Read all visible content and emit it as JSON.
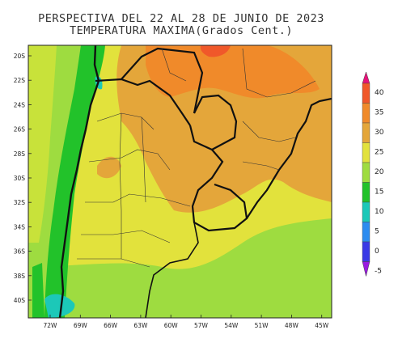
{
  "title": {
    "line1": "PERSPECTIVA DEL 22 AL 28 DE JUNIO DE 2023",
    "line2": "TEMPERATURA MAXIMA(Grados Cent.)"
  },
  "map": {
    "lat_ticks": [
      "20S",
      "22S",
      "24S",
      "26S",
      "28S",
      "30S",
      "32S",
      "34S",
      "36S",
      "38S",
      "40S"
    ],
    "lon_ticks": [
      "72W",
      "69W",
      "66W",
      "63W",
      "60W",
      "57W",
      "54W",
      "51W",
      "48W",
      "45W"
    ],
    "lat_range": [
      -19,
      -42
    ],
    "lon_range": [
      -74,
      -45
    ]
  },
  "colorbar": {
    "labels": [
      "40",
      "35",
      "30",
      "25",
      "20",
      "15",
      "10",
      "5",
      "0",
      "-5"
    ],
    "colors": [
      "#e8127a",
      "#f0582a",
      "#f08a2a",
      "#e4a63a",
      "#e2e23c",
      "#9edc40",
      "#22c22a",
      "#1cc8b8",
      "#2c8cf0",
      "#3a3ae6",
      "#9a1ae0"
    ]
  },
  "legend_scale_note": ""
}
